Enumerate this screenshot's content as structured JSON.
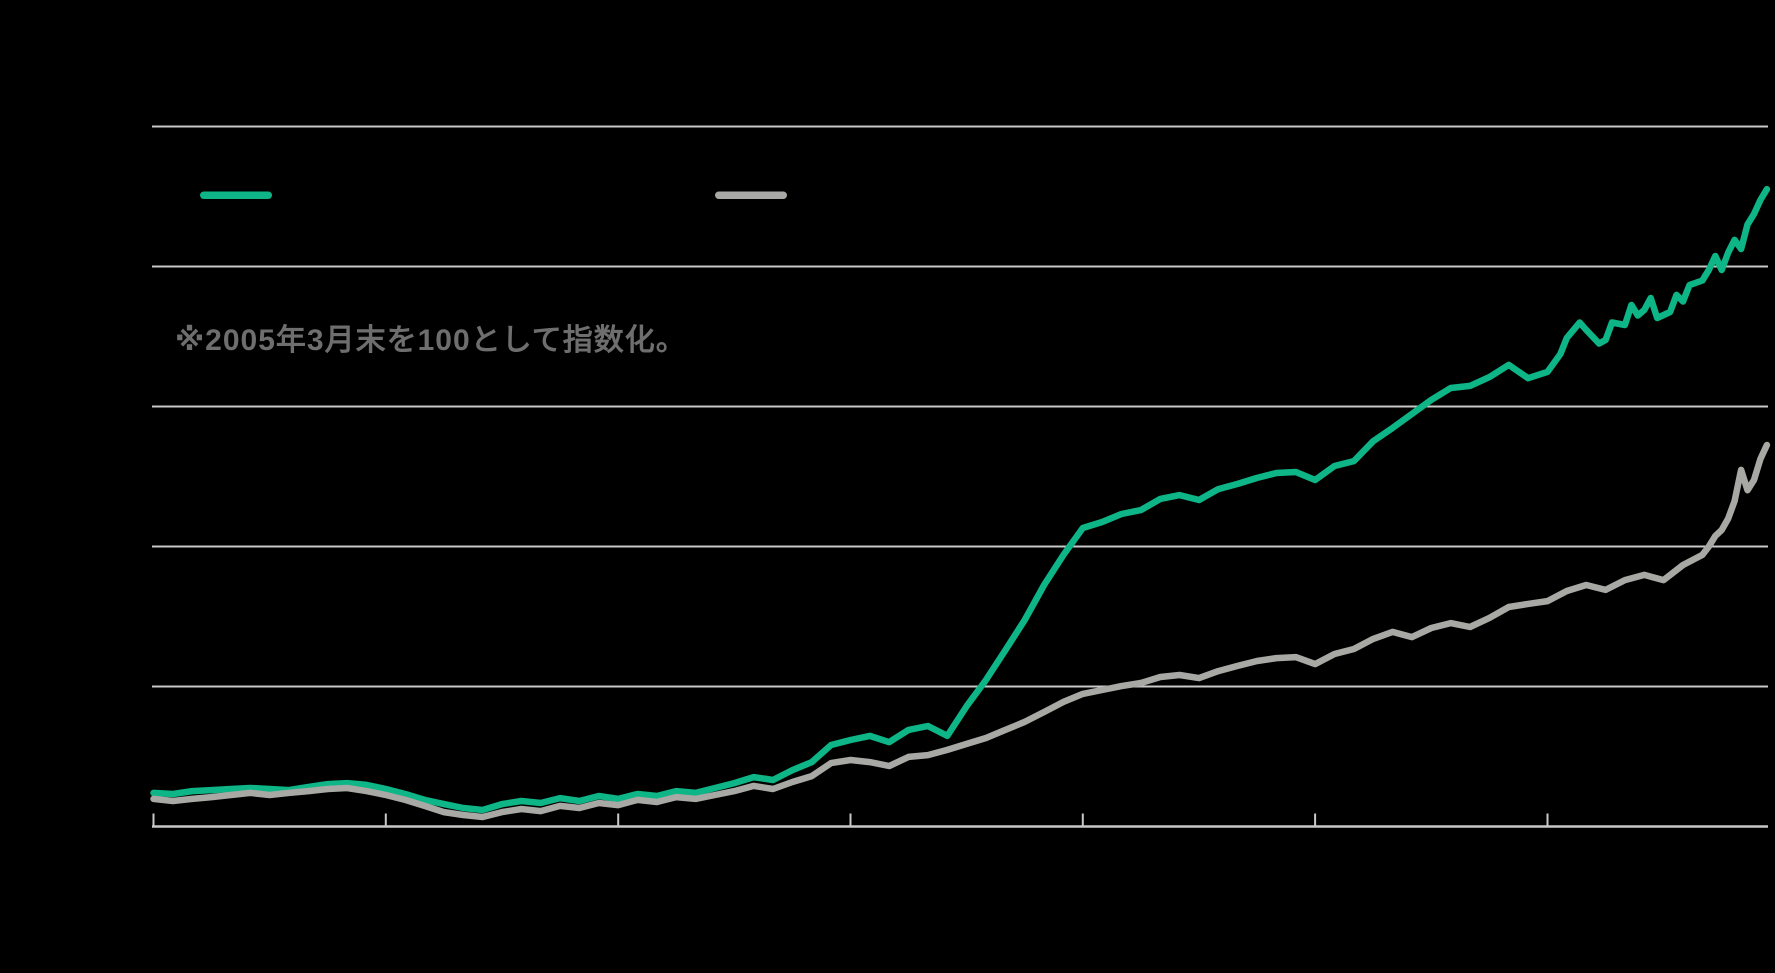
{
  "colors": {
    "background": "#000000",
    "gridline": "#c8c8c8",
    "axis_line": "#c8c8c8",
    "tick": "#c8c8c8",
    "note_text": "#6e6e6e",
    "series_green": "#0db587",
    "series_gray": "#a8a8a4"
  },
  "legend": {
    "items": [
      {
        "id": "series-green",
        "color": "#0db587"
      },
      {
        "id": "series-gray",
        "color": "#a8a8a4"
      }
    ]
  },
  "chart_data": {
    "type": "line",
    "note": "※2005年3月末を100として指数化。",
    "x_unit": "months since 2005-03 (start indexed to 100 per visible note; axis tick labels not visible in pixels)",
    "x_tick_months": [
      0,
      36,
      72,
      108,
      144,
      180,
      216
    ],
    "gridline_values": [
      400,
      800,
      1200,
      1600,
      2000
    ],
    "ylim": [
      0,
      2075
    ],
    "baseline_value": 0,
    "grid": true,
    "legend_position": "top-left-row",
    "series": [
      {
        "id": "series-green",
        "color": "#0db587",
        "points": [
          [
            0,
            96
          ],
          [
            3,
            93
          ],
          [
            6,
            101
          ],
          [
            9,
            104
          ],
          [
            12,
            107
          ],
          [
            15,
            110
          ],
          [
            18,
            107
          ],
          [
            21,
            104
          ],
          [
            24,
            113
          ],
          [
            27,
            121
          ],
          [
            30,
            124
          ],
          [
            33,
            119
          ],
          [
            36,
            107
          ],
          [
            39,
            93
          ],
          [
            42,
            76
          ],
          [
            45,
            64
          ],
          [
            48,
            53
          ],
          [
            51,
            47
          ],
          [
            54,
            64
          ],
          [
            57,
            73
          ],
          [
            60,
            67
          ],
          [
            63,
            81
          ],
          [
            66,
            73
          ],
          [
            69,
            87
          ],
          [
            72,
            79
          ],
          [
            75,
            93
          ],
          [
            78,
            87
          ],
          [
            81,
            101
          ],
          [
            84,
            96
          ],
          [
            87,
            110
          ],
          [
            90,
            124
          ],
          [
            93,
            141
          ],
          [
            96,
            133
          ],
          [
            99,
            161
          ],
          [
            102,
            184
          ],
          [
            105,
            233
          ],
          [
            108,
            247
          ],
          [
            111,
            259
          ],
          [
            114,
            241
          ],
          [
            117,
            276
          ],
          [
            120,
            287
          ],
          [
            123,
            259
          ],
          [
            126,
            344
          ],
          [
            129,
            419
          ],
          [
            132,
            504
          ],
          [
            135,
            590
          ],
          [
            138,
            690
          ],
          [
            141,
            776
          ],
          [
            144,
            853
          ],
          [
            147,
            870
          ],
          [
            150,
            893
          ],
          [
            153,
            904
          ],
          [
            156,
            936
          ],
          [
            159,
            947
          ],
          [
            162,
            933
          ],
          [
            165,
            964
          ],
          [
            168,
            979
          ],
          [
            171,
            996
          ],
          [
            174,
            1010
          ],
          [
            177,
            1013
          ],
          [
            180,
            990
          ],
          [
            183,
            1030
          ],
          [
            186,
            1044
          ],
          [
            189,
            1101
          ],
          [
            192,
            1139
          ],
          [
            195,
            1179
          ],
          [
            198,
            1219
          ],
          [
            201,
            1253
          ],
          [
            204,
            1259
          ],
          [
            207,
            1284
          ],
          [
            210,
            1319
          ],
          [
            213,
            1281
          ],
          [
            216,
            1299
          ],
          [
            218,
            1350
          ],
          [
            219,
            1396
          ],
          [
            221,
            1440
          ],
          [
            222,
            1419
          ],
          [
            224,
            1380
          ],
          [
            225,
            1390
          ],
          [
            226,
            1440
          ],
          [
            228,
            1433
          ],
          [
            229,
            1490
          ],
          [
            230,
            1460
          ],
          [
            231,
            1476
          ],
          [
            232,
            1510
          ],
          [
            233,
            1453
          ],
          [
            235,
            1470
          ],
          [
            236,
            1519
          ],
          [
            237,
            1500
          ],
          [
            238,
            1547
          ],
          [
            240,
            1560
          ],
          [
            241,
            1590
          ],
          [
            242,
            1630
          ],
          [
            243,
            1590
          ],
          [
            244,
            1640
          ],
          [
            245,
            1676
          ],
          [
            246,
            1650
          ],
          [
            247,
            1720
          ],
          [
            248,
            1750
          ],
          [
            249,
            1790
          ],
          [
            250,
            1821
          ]
        ]
      },
      {
        "id": "series-gray",
        "color": "#a8a8a4",
        "points": [
          [
            0,
            79
          ],
          [
            3,
            73
          ],
          [
            6,
            79
          ],
          [
            9,
            84
          ],
          [
            12,
            90
          ],
          [
            15,
            96
          ],
          [
            18,
            90
          ],
          [
            21,
            96
          ],
          [
            24,
            101
          ],
          [
            27,
            107
          ],
          [
            30,
            110
          ],
          [
            33,
            101
          ],
          [
            36,
            90
          ],
          [
            39,
            76
          ],
          [
            42,
            59
          ],
          [
            45,
            41
          ],
          [
            48,
            33
          ],
          [
            51,
            27
          ],
          [
            54,
            41
          ],
          [
            57,
            50
          ],
          [
            60,
            44
          ],
          [
            63,
            59
          ],
          [
            66,
            53
          ],
          [
            69,
            67
          ],
          [
            72,
            61
          ],
          [
            75,
            76
          ],
          [
            78,
            70
          ],
          [
            81,
            84
          ],
          [
            84,
            79
          ],
          [
            87,
            90
          ],
          [
            90,
            101
          ],
          [
            93,
            116
          ],
          [
            96,
            107
          ],
          [
            99,
            127
          ],
          [
            102,
            144
          ],
          [
            105,
            181
          ],
          [
            108,
            190
          ],
          [
            111,
            184
          ],
          [
            114,
            173
          ],
          [
            117,
            199
          ],
          [
            120,
            204
          ],
          [
            123,
            219
          ],
          [
            126,
            236
          ],
          [
            129,
            253
          ],
          [
            132,
            276
          ],
          [
            135,
            299
          ],
          [
            138,
            327
          ],
          [
            141,
            356
          ],
          [
            144,
            379
          ],
          [
            147,
            390
          ],
          [
            150,
            401
          ],
          [
            153,
            410
          ],
          [
            156,
            427
          ],
          [
            159,
            433
          ],
          [
            162,
            424
          ],
          [
            165,
            444
          ],
          [
            168,
            459
          ],
          [
            171,
            473
          ],
          [
            174,
            481
          ],
          [
            177,
            484
          ],
          [
            180,
            464
          ],
          [
            183,
            493
          ],
          [
            186,
            507
          ],
          [
            189,
            536
          ],
          [
            192,
            556
          ],
          [
            195,
            541
          ],
          [
            198,
            567
          ],
          [
            201,
            581
          ],
          [
            204,
            570
          ],
          [
            207,
            596
          ],
          [
            210,
            627
          ],
          [
            213,
            636
          ],
          [
            216,
            644
          ],
          [
            219,
            673
          ],
          [
            222,
            690
          ],
          [
            225,
            676
          ],
          [
            228,
            704
          ],
          [
            231,
            719
          ],
          [
            234,
            704
          ],
          [
            237,
            747
          ],
          [
            240,
            776
          ],
          [
            241,
            800
          ],
          [
            242,
            830
          ],
          [
            243,
            847
          ],
          [
            244,
            880
          ],
          [
            245,
            930
          ],
          [
            246,
            1019
          ],
          [
            247,
            961
          ],
          [
            248,
            990
          ],
          [
            249,
            1050
          ],
          [
            250,
            1090
          ]
        ]
      }
    ]
  }
}
